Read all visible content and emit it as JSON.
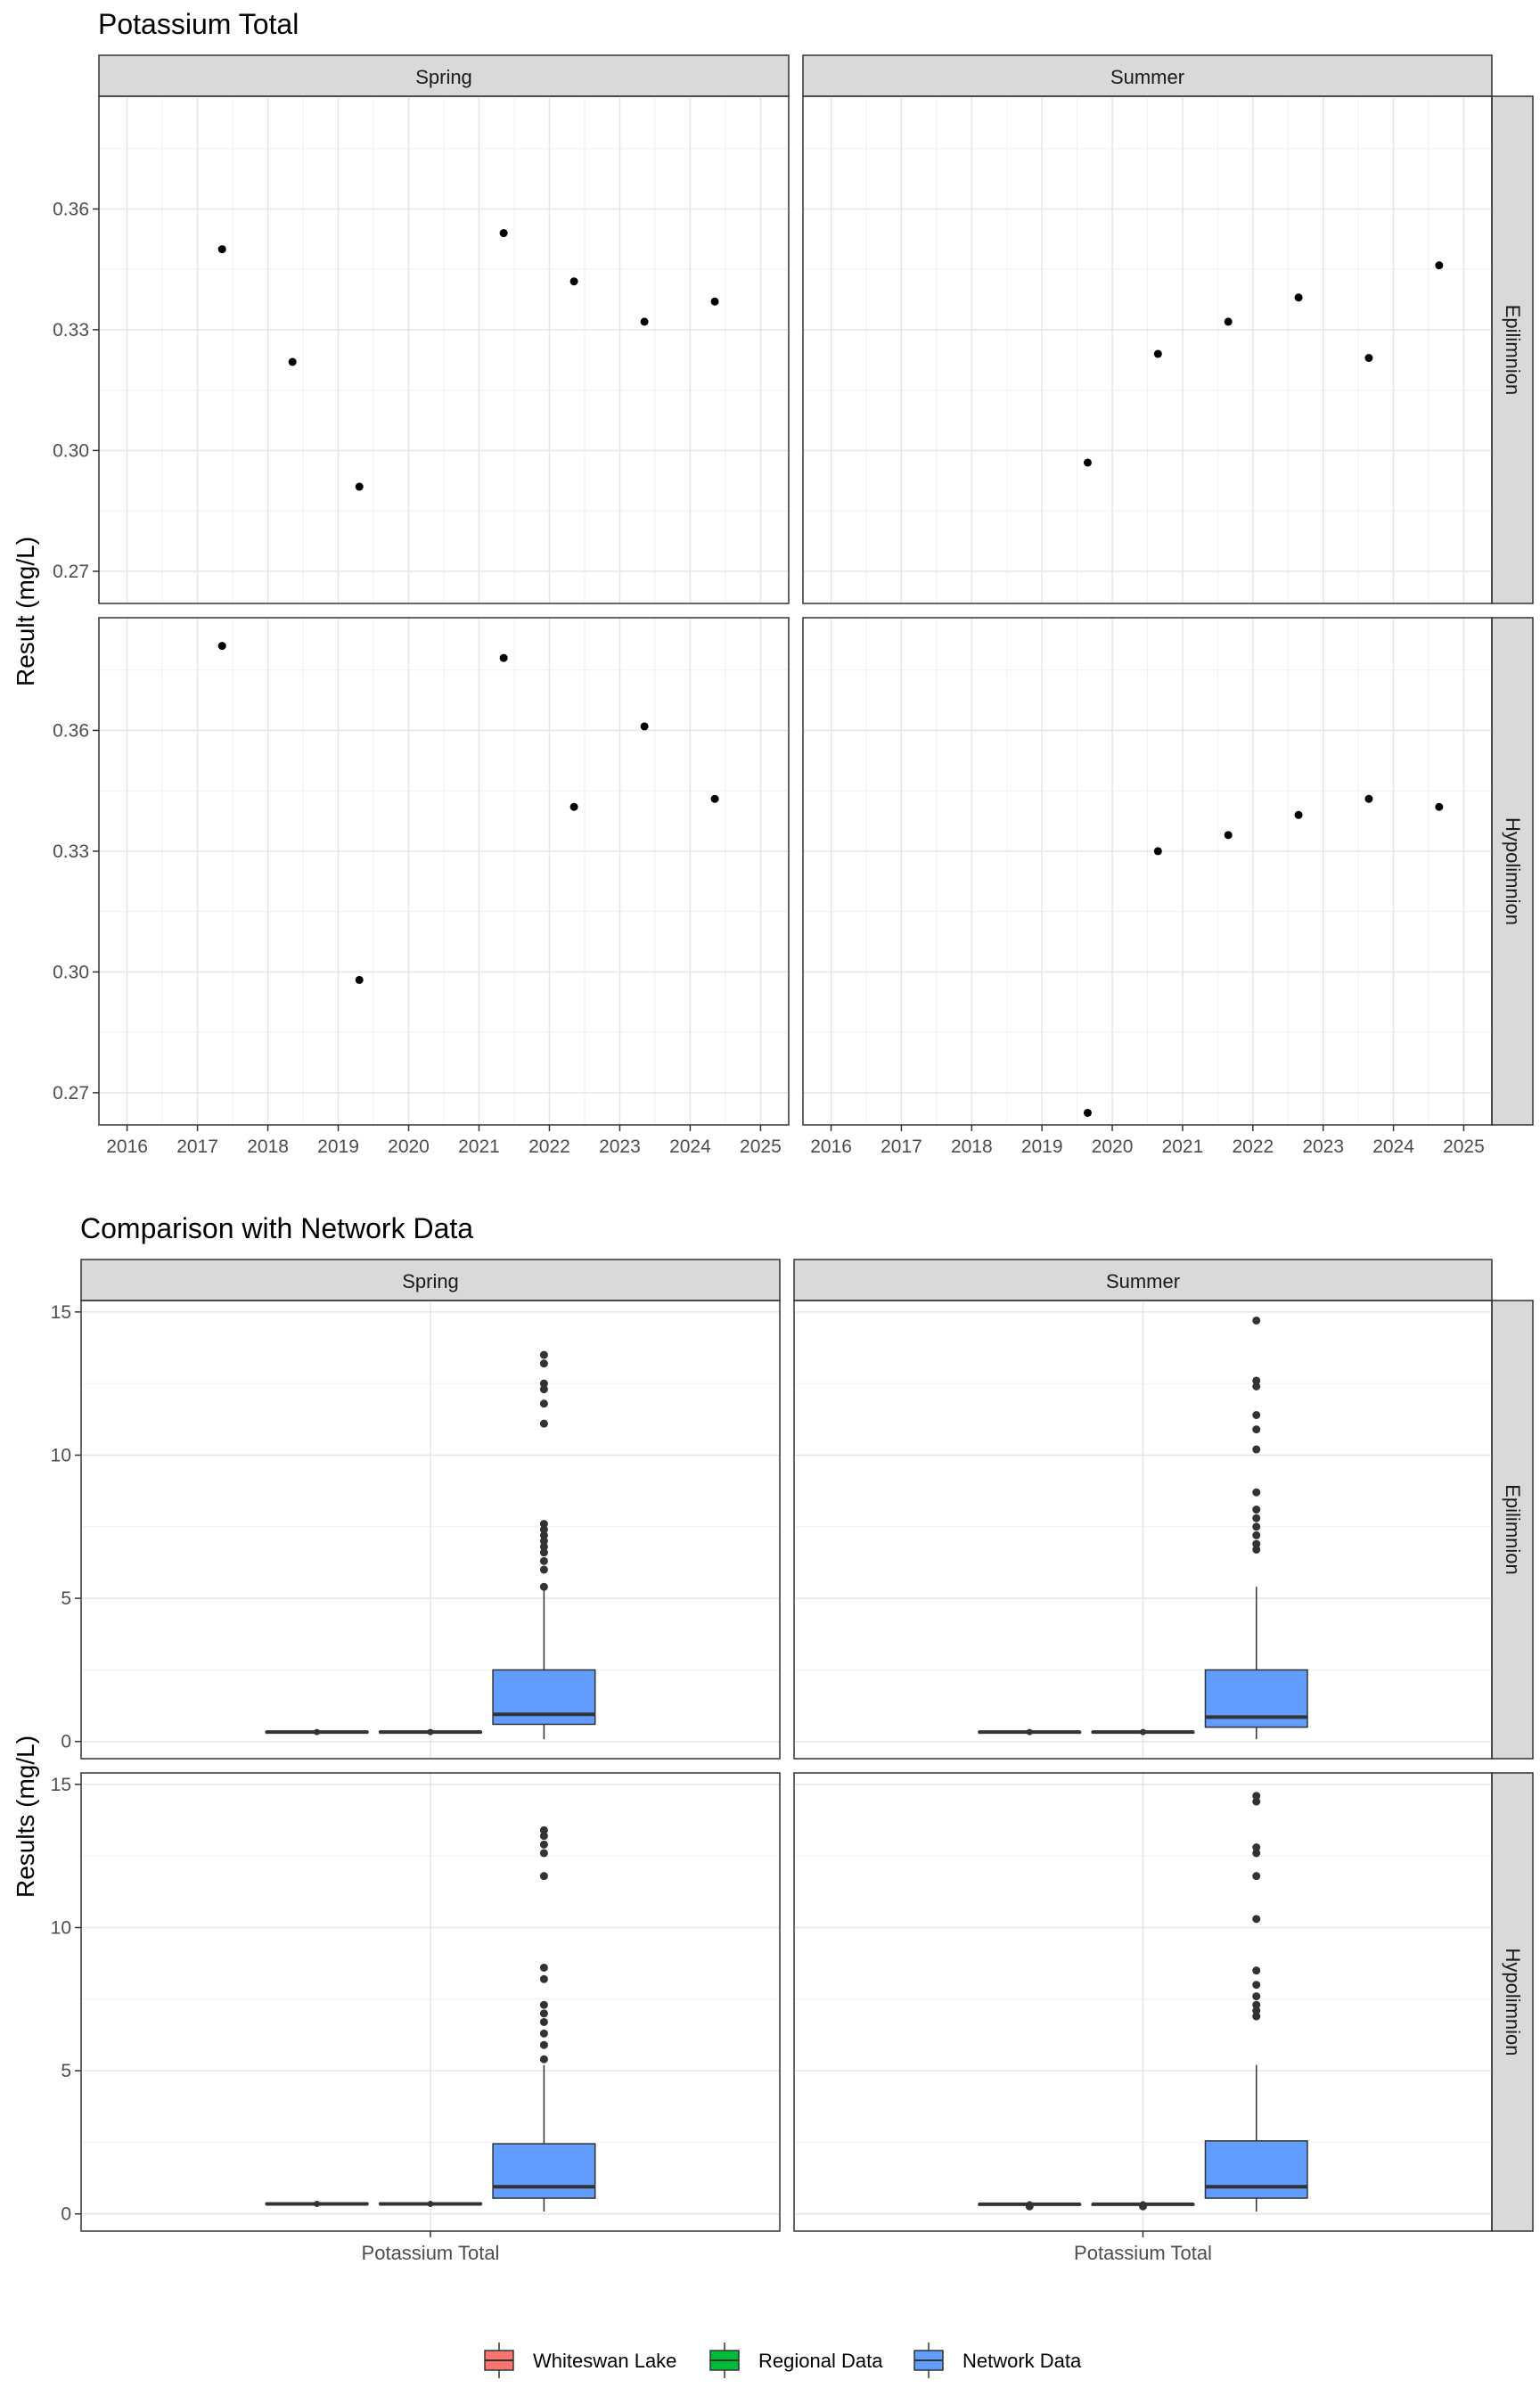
{
  "chart_data": [
    {
      "type": "scatter",
      "title": "Potassium Total",
      "ylabel": "Result (mg/L)",
      "xlabel": "",
      "facet_columns": [
        "Spring",
        "Summer"
      ],
      "facet_rows": [
        "Epilimnion",
        "Hypolimnion"
      ],
      "xlim": [
        2015.6,
        2025.4
      ],
      "ylim": [
        0.262,
        0.388
      ],
      "x_ticks": [
        "2016",
        "2017",
        "2018",
        "2019",
        "2020",
        "2021",
        "2022",
        "2023",
        "2024",
        "2025"
      ],
      "y_ticks": [
        "0.27",
        "0.30",
        "0.33",
        "0.36"
      ],
      "grid": true,
      "panels": [
        {
          "column": "Spring",
          "row": "Epilimnion",
          "points": [
            [
              2017.35,
              0.35
            ],
            [
              2018.35,
              0.322
            ],
            [
              2019.3,
              0.291
            ],
            [
              2021.35,
              0.354
            ],
            [
              2022.35,
              0.342
            ],
            [
              2023.35,
              0.332
            ],
            [
              2024.35,
              0.337
            ]
          ]
        },
        {
          "column": "Summer",
          "row": "Epilimnion",
          "points": [
            [
              2019.65,
              0.297
            ],
            [
              2020.65,
              0.324
            ],
            [
              2021.65,
              0.332
            ],
            [
              2022.65,
              0.338
            ],
            [
              2023.65,
              0.323
            ],
            [
              2024.65,
              0.346
            ]
          ]
        },
        {
          "column": "Spring",
          "row": "Hypolimnion",
          "points": [
            [
              2017.35,
              0.381
            ],
            [
              2019.3,
              0.298
            ],
            [
              2021.35,
              0.378
            ],
            [
              2022.35,
              0.341
            ],
            [
              2023.35,
              0.361
            ],
            [
              2024.35,
              0.343
            ]
          ]
        },
        {
          "column": "Summer",
          "row": "Hypolimnion",
          "points": [
            [
              2019.65,
              0.265
            ],
            [
              2020.65,
              0.33
            ],
            [
              2021.65,
              0.334
            ],
            [
              2022.65,
              0.339
            ],
            [
              2023.65,
              0.343
            ],
            [
              2024.65,
              0.341
            ]
          ]
        }
      ]
    },
    {
      "type": "boxplot",
      "title": "Comparison with Network Data",
      "ylabel": "Results (mg/L)",
      "xlabel": "",
      "category": "Potassium Total",
      "facet_columns": [
        "Spring",
        "Summer"
      ],
      "facet_rows": [
        "Epilimnion",
        "Hypolimnion"
      ],
      "ylim": [
        -0.6,
        15.4
      ],
      "y_ticks": [
        0,
        5,
        10,
        15
      ],
      "grid": true,
      "legend_position": "bottom",
      "series": [
        {
          "name": "Whiteswan Lake",
          "color": "#F8766D"
        },
        {
          "name": "Regional Data",
          "color": "#00BA38"
        },
        {
          "name": "Network Data",
          "color": "#619CFF"
        }
      ],
      "panels": [
        {
          "column": "Spring",
          "row": "Epilimnion",
          "boxes": [
            {
              "series": "Whiteswan Lake",
              "min": 0.29,
              "q1": 0.31,
              "median": 0.33,
              "q3": 0.345,
              "max": 0.354,
              "outliers": []
            },
            {
              "series": "Regional Data",
              "min": 0.29,
              "q1": 0.31,
              "median": 0.33,
              "q3": 0.345,
              "max": 0.354,
              "outliers": []
            },
            {
              "series": "Network Data",
              "min": 0.08,
              "q1": 0.6,
              "median": 0.95,
              "q3": 2.5,
              "max": 5.3,
              "outliers": [
                5.4,
                6.0,
                6.3,
                6.6,
                6.8,
                7.0,
                7.2,
                7.4,
                7.6,
                11.1,
                11.8,
                12.3,
                12.5,
                13.2,
                13.5
              ]
            }
          ]
        },
        {
          "column": "Summer",
          "row": "Epilimnion",
          "boxes": [
            {
              "series": "Whiteswan Lake",
              "min": 0.297,
              "q1": 0.32,
              "median": 0.33,
              "q3": 0.338,
              "max": 0.346,
              "outliers": []
            },
            {
              "series": "Regional Data",
              "min": 0.297,
              "q1": 0.32,
              "median": 0.33,
              "q3": 0.338,
              "max": 0.346,
              "outliers": []
            },
            {
              "series": "Network Data",
              "min": 0.08,
              "q1": 0.5,
              "median": 0.85,
              "q3": 2.5,
              "max": 5.4,
              "outliers": [
                6.7,
                6.9,
                7.2,
                7.5,
                7.8,
                8.1,
                8.7,
                10.2,
                10.9,
                11.4,
                12.4,
                12.6,
                14.7
              ]
            }
          ]
        },
        {
          "column": "Spring",
          "row": "Hypolimnion",
          "boxes": [
            {
              "series": "Whiteswan Lake",
              "min": 0.298,
              "q1": 0.34,
              "median": 0.35,
              "q3": 0.37,
              "max": 0.381,
              "outliers": []
            },
            {
              "series": "Regional Data",
              "min": 0.298,
              "q1": 0.34,
              "median": 0.35,
              "q3": 0.37,
              "max": 0.381,
              "outliers": []
            },
            {
              "series": "Network Data",
              "min": 0.08,
              "q1": 0.55,
              "median": 0.95,
              "q3": 2.45,
              "max": 5.2,
              "outliers": [
                5.4,
                5.9,
                6.3,
                6.7,
                7.0,
                7.3,
                8.2,
                8.6,
                11.8,
                12.6,
                12.9,
                13.2,
                13.4
              ]
            }
          ]
        },
        {
          "column": "Summer",
          "row": "Hypolimnion",
          "boxes": [
            {
              "series": "Whiteswan Lake",
              "min": 0.265,
              "q1": 0.33,
              "median": 0.338,
              "q3": 0.342,
              "max": 0.343,
              "outliers": [
                0.265
              ]
            },
            {
              "series": "Regional Data",
              "min": 0.265,
              "q1": 0.33,
              "median": 0.338,
              "q3": 0.342,
              "max": 0.343,
              "outliers": [
                0.265
              ]
            },
            {
              "series": "Network Data",
              "min": 0.08,
              "q1": 0.55,
              "median": 0.95,
              "q3": 2.55,
              "max": 5.2,
              "outliers": [
                6.9,
                7.1,
                7.3,
                7.6,
                8.0,
                8.5,
                10.3,
                11.8,
                12.6,
                12.8,
                14.4,
                14.6
              ]
            }
          ]
        }
      ]
    }
  ]
}
